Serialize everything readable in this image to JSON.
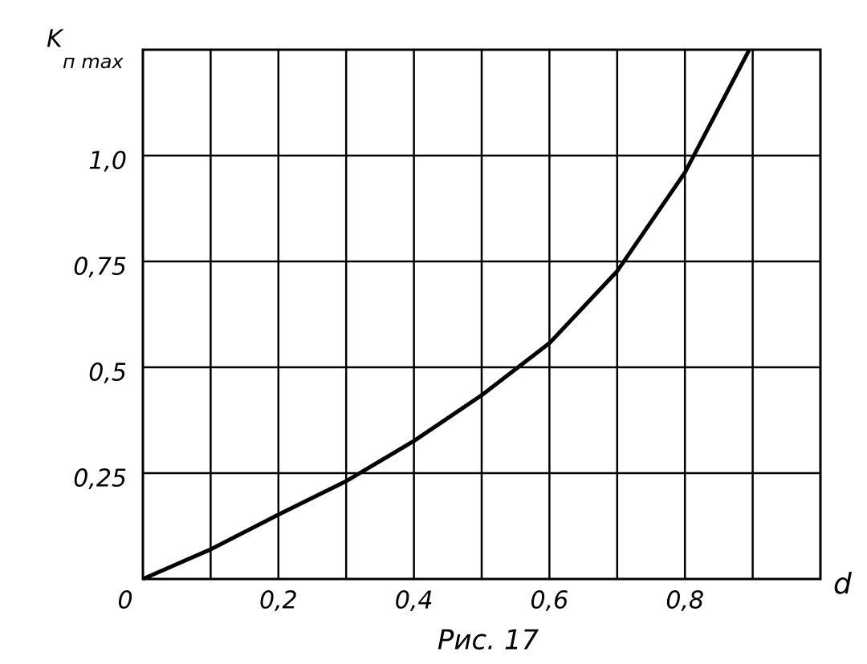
{
  "chart_data": {
    "type": "line",
    "ylabel": "K",
    "ylabel_sub": "п max",
    "xlabel": "d",
    "caption": "Рис. 17",
    "xlim": [
      0,
      1.0
    ],
    "ylim": [
      0,
      1.25
    ],
    "xticks": [
      0,
      {
        "value": 0.2,
        "label": "0,2"
      },
      {
        "value": 0.4,
        "label": "0,4"
      },
      {
        "value": 0.6,
        "label": "0,6"
      },
      {
        "value": 0.8,
        "label": "0,8"
      }
    ],
    "xgrid": [
      0.1,
      0.2,
      0.3,
      0.4,
      0.5,
      0.6,
      0.7,
      0.8,
      0.9
    ],
    "yticks": [
      {
        "value": 0.25,
        "label": "0,25"
      },
      {
        "value": 0.5,
        "label": "0,5"
      },
      {
        "value": 0.75,
        "label": "0,75"
      },
      {
        "value": 1.0,
        "label": "1,0"
      }
    ],
    "grid": true,
    "color": "#000000",
    "x": [
      0,
      0.1,
      0.2,
      0.3,
      0.4,
      0.5,
      0.6,
      0.7,
      0.8,
      0.895
    ],
    "values": [
      0,
      0.07,
      0.152,
      0.231,
      0.326,
      0.434,
      0.557,
      0.727,
      0.96,
      1.25
    ]
  }
}
